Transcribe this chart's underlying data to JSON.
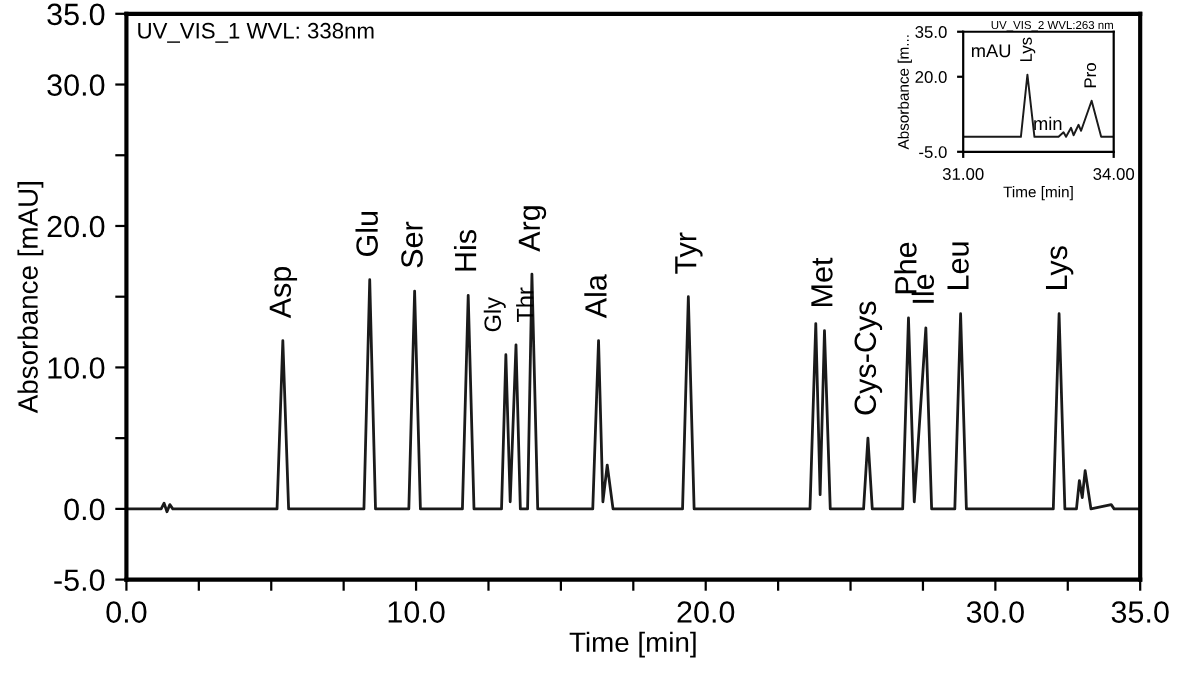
{
  "chart_data": [
    {
      "type": "line",
      "xlabel": "Time [min]",
      "ylabel": "Absorbance [mAU]",
      "xlim": [
        0,
        35
      ],
      "ylim": [
        -5,
        35
      ],
      "xticks": [
        {
          "value": 0,
          "label": "0.0"
        },
        {
          "value": 2.5,
          "label": null
        },
        {
          "value": 5,
          "label": null
        },
        {
          "value": 7.5,
          "label": null
        },
        {
          "value": 10,
          "label": "10.0"
        },
        {
          "value": 12.5,
          "label": null
        },
        {
          "value": 15,
          "label": null
        },
        {
          "value": 17.5,
          "label": null
        },
        {
          "value": 20,
          "label": "20.0"
        },
        {
          "value": 22.5,
          "label": null
        },
        {
          "value": 25,
          "label": null
        },
        {
          "value": 27.5,
          "label": null
        },
        {
          "value": 30,
          "label": "30.0"
        },
        {
          "value": 32.5,
          "label": null
        },
        {
          "value": 35,
          "label": "35.0"
        }
      ],
      "yticks": [
        {
          "value": -5,
          "label": "-5.0"
        },
        {
          "value": 0,
          "label": "0.0"
        },
        {
          "value": 5,
          "label": null
        },
        {
          "value": 10,
          "label": "10.0"
        },
        {
          "value": 15,
          "label": null
        },
        {
          "value": 20,
          "label": "20.0"
        },
        {
          "value": 25,
          "label": null
        },
        {
          "value": 30,
          "label": "30.0"
        },
        {
          "value": 35,
          "label": "35.0"
        }
      ],
      "grid": false,
      "legend": false,
      "marker": "none",
      "line_style": "solid",
      "series": [
        {
          "color": "#1a1a1a",
          "x": [
            0,
            1.2,
            1.3,
            1.4,
            1.5,
            1.6,
            5.2,
            5.4,
            5.6,
            8.2,
            8.4,
            8.6,
            9.75,
            9.95,
            10.15,
            11.6,
            11.8,
            12.0,
            12.95,
            13.1,
            13.25,
            13.45,
            13.6,
            13.85,
            14.0,
            14.2,
            16.1,
            16.3,
            16.45,
            16.6,
            16.8,
            19.2,
            19.4,
            19.6,
            23.6,
            23.8,
            23.95,
            24.1,
            24.3,
            25.45,
            25.6,
            25.75,
            26.8,
            27.0,
            27.2,
            27.6,
            27.8,
            28.6,
            28.8,
            29.0,
            32.0,
            32.2,
            32.4,
            32.8,
            32.9,
            33.0,
            33.1,
            33.3,
            34.0,
            34.1,
            35.0
          ],
          "values": [
            0,
            0,
            0.4,
            -0.2,
            0.3,
            0,
            0,
            11.9,
            0,
            0,
            16.2,
            0,
            0,
            15.4,
            0,
            0,
            15.1,
            0,
            0,
            10.9,
            0.5,
            11.6,
            0,
            0,
            16.6,
            0,
            0,
            11.9,
            0.5,
            3.1,
            0,
            0,
            15.0,
            0,
            0,
            13.1,
            1.0,
            12.6,
            0,
            0,
            5.0,
            0,
            0,
            13.5,
            0.5,
            12.8,
            0,
            0,
            13.8,
            0,
            0,
            13.8,
            0,
            0,
            2.0,
            0.8,
            2.7,
            0,
            0.3,
            0,
            0
          ]
        }
      ],
      "annotations": [
        "UV_VIS_1 WVL: 338nm",
        {
          "text": "Asp",
          "x": 5.4,
          "y": 11.9
        },
        {
          "text": "Glu",
          "x": 8.4,
          "y": 16.2
        },
        {
          "text": "Ser",
          "x": 9.95,
          "y": 15.4
        },
        {
          "text": "His",
          "x": 11.8,
          "y": 15.1
        },
        {
          "text": "Gly",
          "x": 13.1,
          "y": 10.9
        },
        {
          "text": "Thr",
          "x": 13.45,
          "y": 11.6
        },
        {
          "text": "Arg",
          "x": 14.0,
          "y": 16.6
        },
        {
          "text": "Ala",
          "x": 16.3,
          "y": 11.9
        },
        {
          "text": "Tyr",
          "x": 19.4,
          "y": 15.0
        },
        {
          "text": "Met",
          "x": 24.1,
          "y": 12.6
        },
        {
          "text": "Cys-Cys",
          "x": 25.6,
          "y": 5.0
        },
        {
          "text": "Phe",
          "x": 27.0,
          "y": 13.5
        },
        {
          "text": "Ile",
          "x": 27.6,
          "y": 12.8
        },
        {
          "text": "Leu",
          "x": 28.8,
          "y": 13.8
        },
        {
          "text": "Lys",
          "x": 32.2,
          "y": 13.8
        }
      ]
    },
    {
      "type": "line",
      "title": "UV_VIS_2 WVL:263 nm",
      "xlabel": "Time [min]",
      "ylabel": "Absorbance [m...",
      "xlim": [
        31,
        34
      ],
      "ylim": [
        -5,
        35
      ],
      "xticks": [
        {
          "value": 31,
          "label": "31.00"
        },
        {
          "value": 34,
          "label": "34.00"
        }
      ],
      "yticks": [
        {
          "value": -5,
          "label": "-5.0"
        },
        {
          "value": 20,
          "label": "20.0"
        },
        {
          "value": 35,
          "label": "35.0"
        }
      ],
      "grid": false,
      "legend": false,
      "marker": "none",
      "line_style": "solid",
      "series": [
        {
          "color": "#1a1a1a",
          "x": [
            31,
            32.15,
            32.28,
            32.42,
            32.9,
            33.0,
            33.05,
            33.15,
            33.2,
            33.3,
            33.35,
            33.56,
            33.75,
            34
          ],
          "values": [
            0,
            0,
            20.7,
            0,
            0,
            1.5,
            0,
            3,
            0.5,
            4,
            2,
            12.0,
            0,
            0
          ]
        }
      ],
      "annotations": [
        "mAU",
        "min",
        {
          "text": "Lys",
          "x": 32.28,
          "y": 20.7
        },
        {
          "text": "Pro",
          "x": 33.56,
          "y": 12.0
        }
      ]
    }
  ]
}
